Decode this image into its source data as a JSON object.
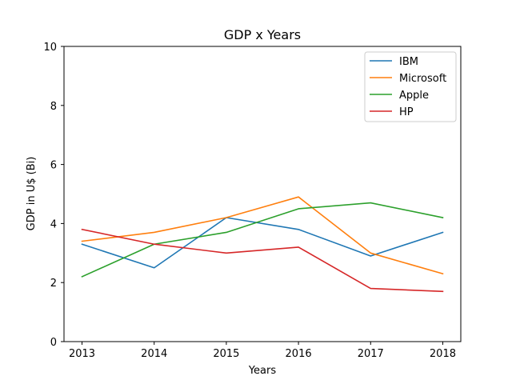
{
  "chart_data": {
    "type": "line",
    "title": "GDP x Years",
    "xlabel": "Years",
    "ylabel": "GDP in U$ (Bi)",
    "x": [
      2013,
      2014,
      2015,
      2016,
      2017,
      2018
    ],
    "xlim": [
      2012.75,
      2018.25
    ],
    "ylim": [
      0,
      10
    ],
    "yticks": [
      0,
      2,
      4,
      6,
      8,
      10
    ],
    "grid": false,
    "legend_position": "top-right",
    "series": [
      {
        "name": "IBM",
        "color": "#1f77b4",
        "values": [
          3.3,
          2.5,
          4.2,
          3.8,
          2.9,
          3.7
        ]
      },
      {
        "name": "Microsoft",
        "color": "#ff7f0e",
        "values": [
          3.4,
          3.7,
          4.2,
          4.9,
          3.0,
          2.3
        ]
      },
      {
        "name": "Apple",
        "color": "#2ca02c",
        "values": [
          2.2,
          3.3,
          3.7,
          4.5,
          4.7,
          4.2
        ]
      },
      {
        "name": "HP",
        "color": "#d62728",
        "values": [
          3.8,
          3.3,
          3.0,
          3.2,
          1.8,
          1.7
        ]
      }
    ]
  }
}
